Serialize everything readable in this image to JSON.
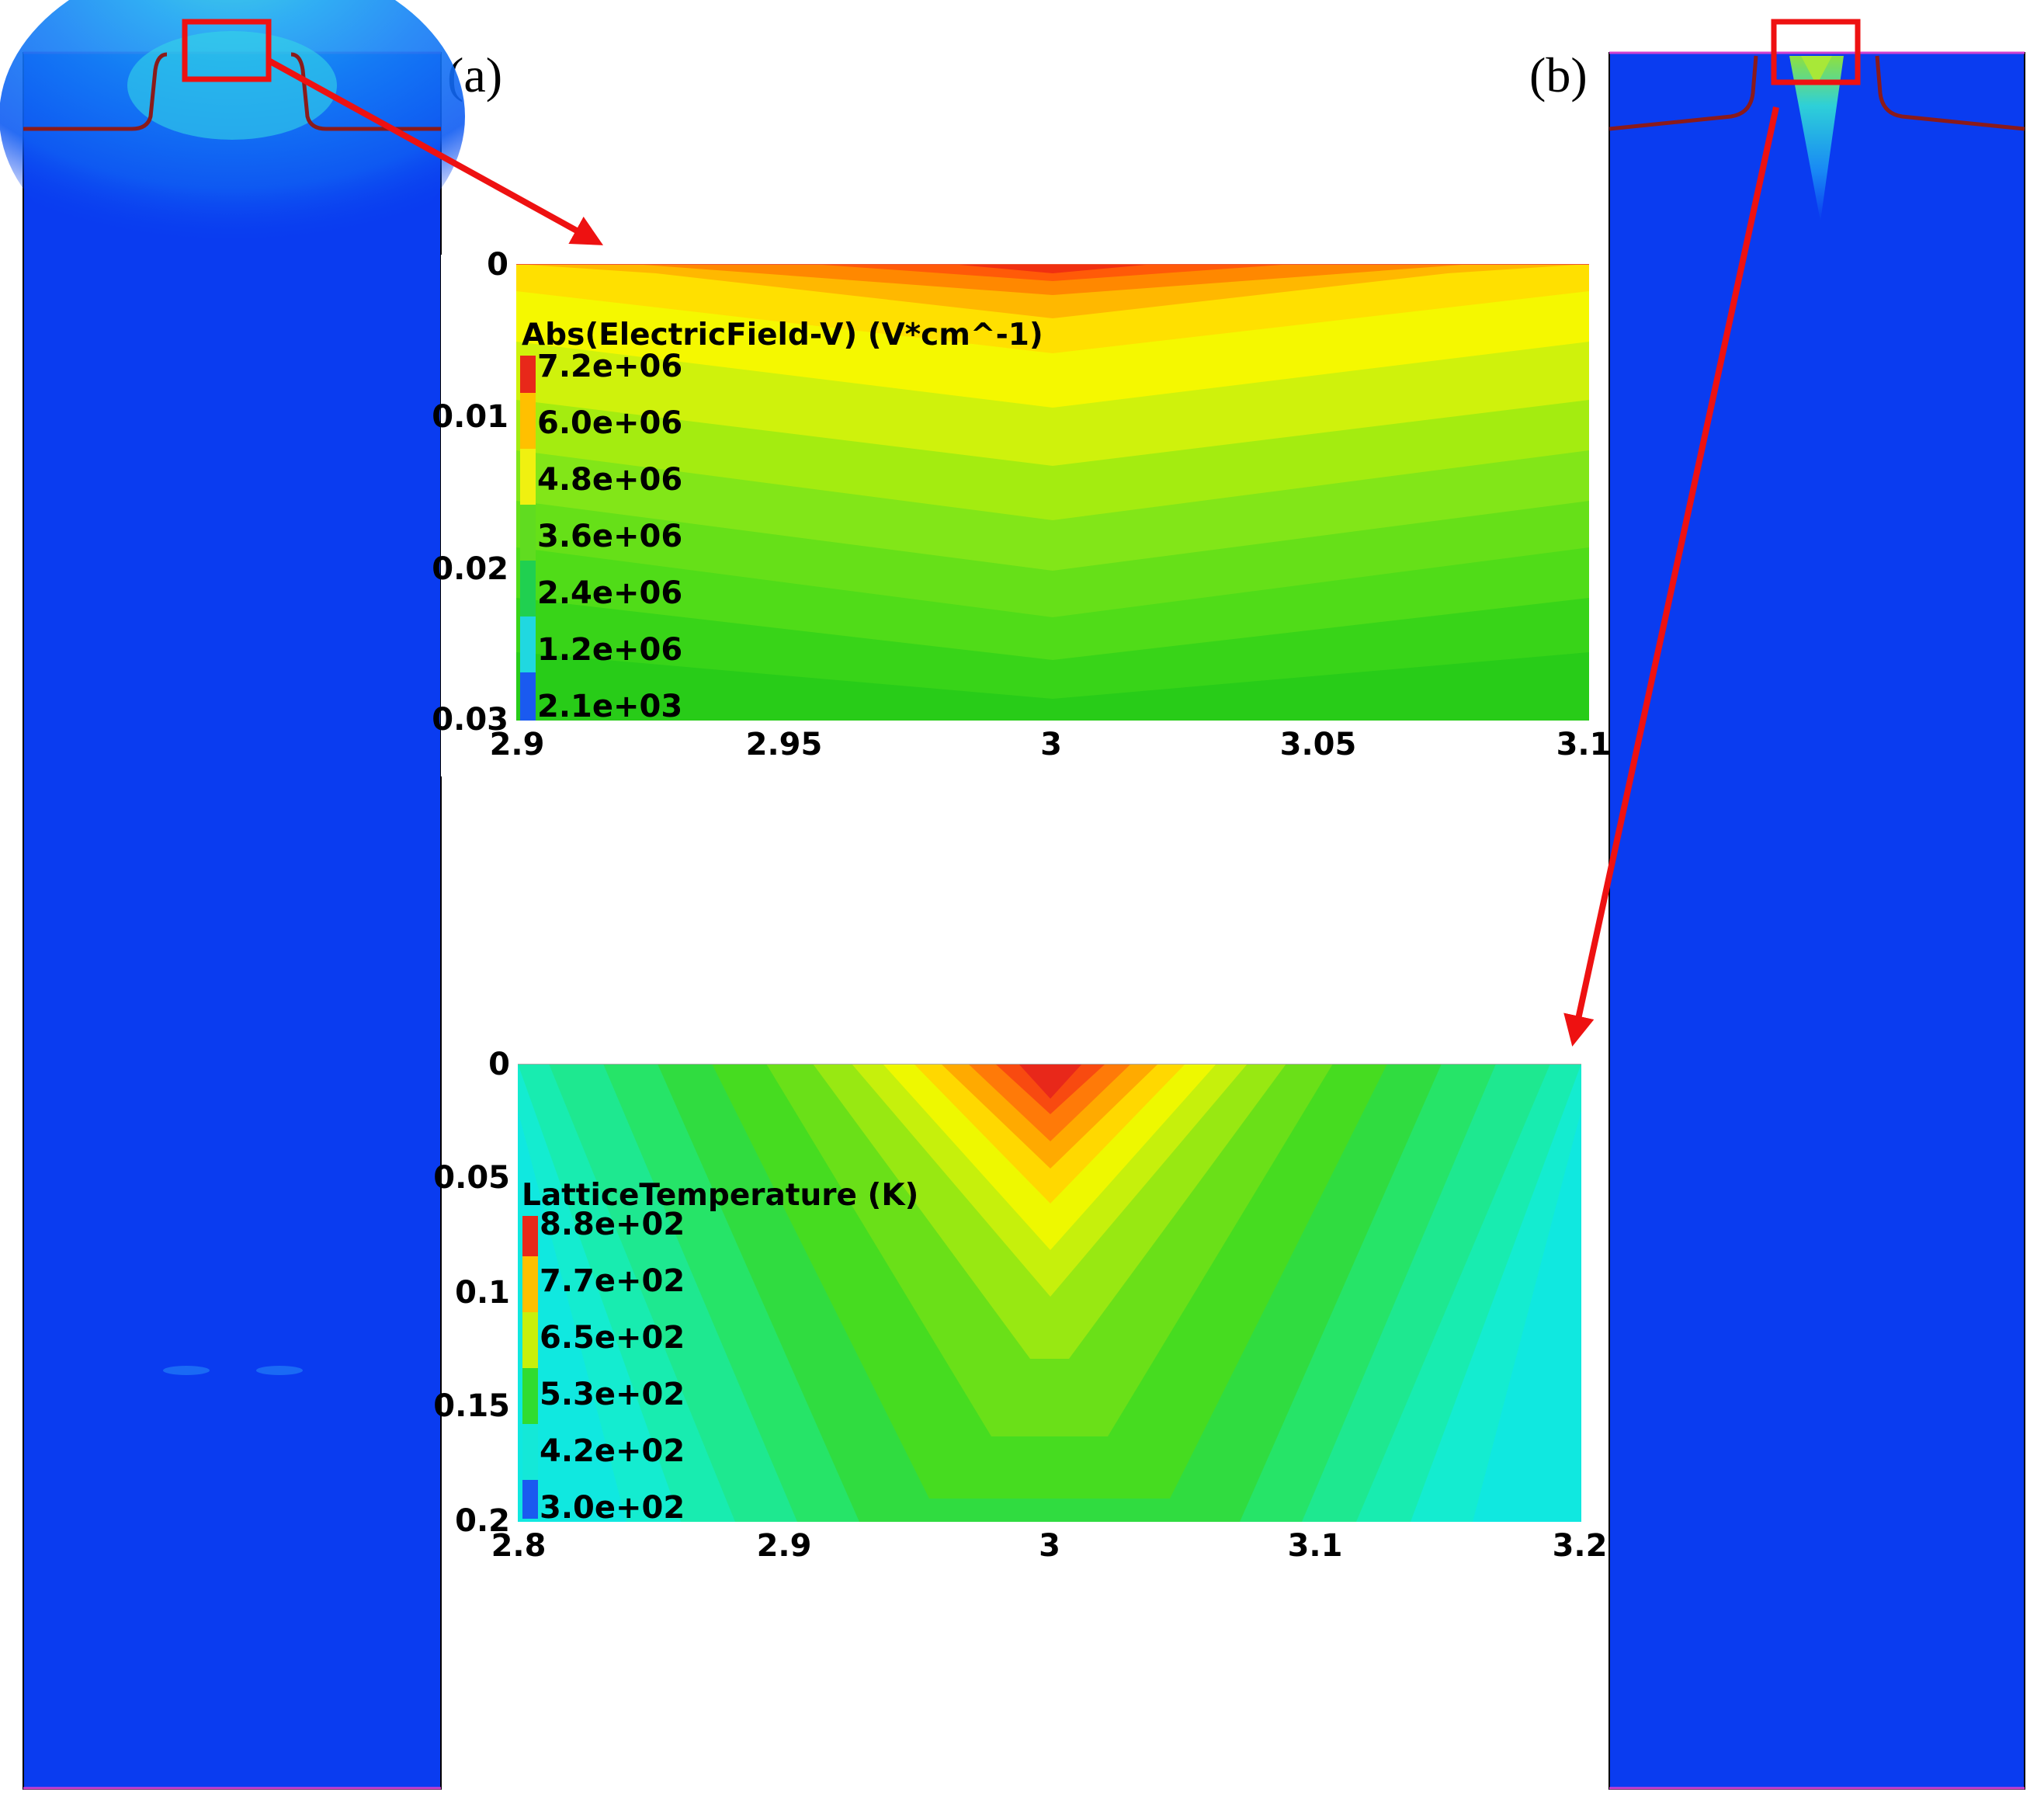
{
  "panels": {
    "a_label": "(a)",
    "b_label": "(b)"
  },
  "chart_data": [
    {
      "type": "heatmap",
      "title": "Abs(ElectricField-V) (V*cm^-1)",
      "xlim": [
        2.9,
        3.1
      ],
      "ylim": [
        0,
        0.03
      ],
      "y_inverted": true,
      "x_ticks": [
        "2.9",
        "2.95",
        "3",
        "3.05",
        "3.1"
      ],
      "y_ticks": [
        "0",
        "0.01",
        "0.02",
        "0.03"
      ],
      "colorbar_labels": [
        "7.2e+06",
        "6.0e+06",
        "4.8e+06",
        "3.6e+06",
        "2.4e+06",
        "1.2e+06",
        "2.1e+03"
      ],
      "peak": {
        "x": 3,
        "y": 0,
        "value": 7200000.0
      },
      "value_min": 2100.0,
      "value_max": 7200000.0
    },
    {
      "type": "heatmap",
      "title": "LatticeTemperature (K)",
      "xlim": [
        2.8,
        3.2
      ],
      "ylim": [
        0,
        0.2
      ],
      "y_inverted": true,
      "x_ticks": [
        "2.8",
        "2.9",
        "3",
        "3.1",
        "3.2"
      ],
      "y_ticks": [
        "0",
        "0.05",
        "0.1",
        "0.15",
        "0.2"
      ],
      "colorbar_labels": [
        "8.8e+02",
        "7.7e+02",
        "6.5e+02",
        "5.3e+02",
        "4.2e+02",
        "3.0e+02"
      ],
      "peak": {
        "x": 3,
        "y": 0,
        "value": 880
      },
      "value_min": 300,
      "value_max": 880
    }
  ],
  "colors": {
    "device_blue": "#0a3cf0",
    "arrow_red": "#ee1111",
    "junction_line": "#8b1a1a",
    "boundary_magenta": "#d040d0"
  }
}
